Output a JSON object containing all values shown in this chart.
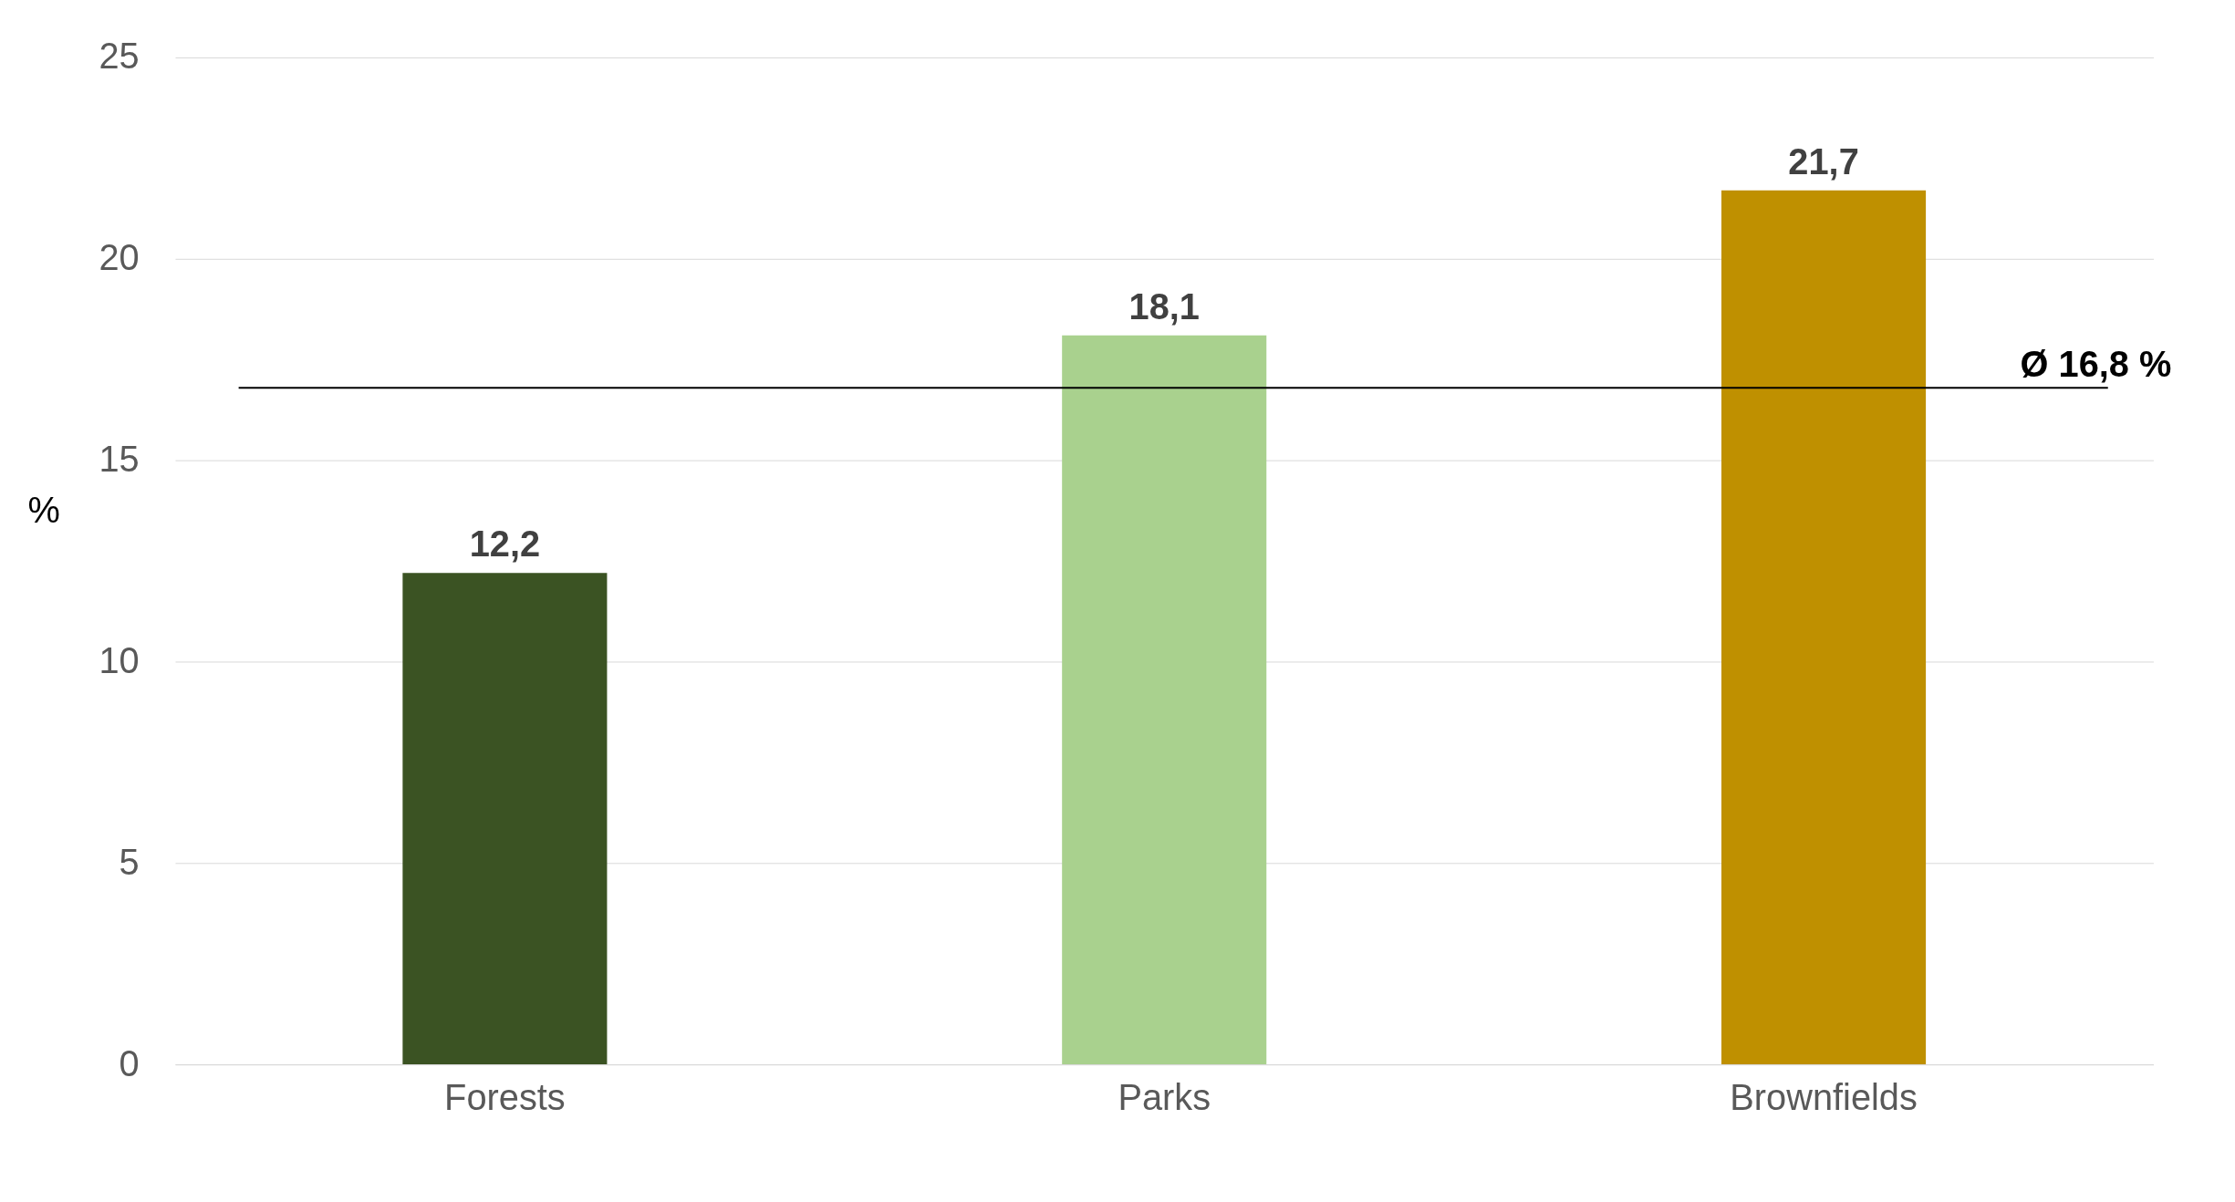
{
  "chart_data": {
    "type": "bar",
    "ylabel": "%",
    "categories": [
      "Forests",
      "Parks",
      "Brownfields"
    ],
    "values": [
      12.2,
      18.1,
      21.7
    ],
    "colors": [
      "#3b5323",
      "#a9d18e",
      "#bf9000"
    ],
    "value_labels": [
      "12,2",
      "18,1",
      "21,7"
    ],
    "ylim": [
      0,
      25
    ],
    "yticks": [
      0,
      5,
      10,
      15,
      20,
      25
    ],
    "grid": "y",
    "ref_lines": [
      {
        "axis": "y",
        "value": 16.8,
        "label": "Ø  16,8 %",
        "color": "#000000"
      }
    ]
  }
}
